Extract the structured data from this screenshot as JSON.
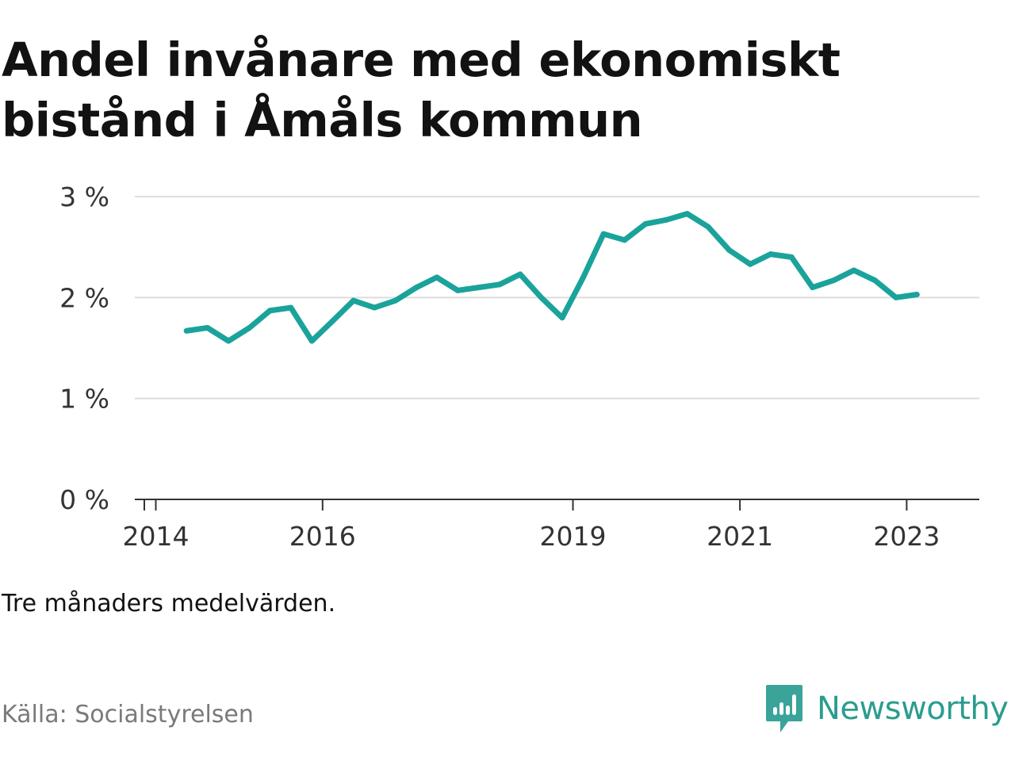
{
  "title": "Andel invånare med ekonomiskt bistånd i Åmåls kommun",
  "note": "Tre månaders medelvärden.",
  "source": "Källa: Socialstyrelsen",
  "brand": "Newsworthy",
  "colors": {
    "line": "#1aa39b",
    "grid": "#dddddd",
    "axis": "#333333",
    "brand": "#2a9d8f"
  },
  "chart_data": {
    "type": "line",
    "title": "Andel invånare med ekonomiskt bistånd i Åmåls kommun",
    "xlabel": "",
    "ylabel": "",
    "grid": true,
    "ylim": [
      0,
      3
    ],
    "xlim": [
      "2013-10-01",
      "2023-11-15"
    ],
    "yticks": [
      {
        "value": 0,
        "label": "0 %"
      },
      {
        "value": 1,
        "label": "1 %"
      },
      {
        "value": 2,
        "label": "2 %"
      },
      {
        "value": 3,
        "label": "3 %"
      }
    ],
    "xticks": [
      {
        "date": "2014-01-01",
        "label": "2014"
      },
      {
        "date": "2016-01-01",
        "label": "2016"
      },
      {
        "date": "2019-01-01",
        "label": "2019"
      },
      {
        "date": "2021-01-01",
        "label": "2021"
      },
      {
        "date": "2023-01-01",
        "label": "2023"
      }
    ],
    "series": [
      {
        "points": [
          {
            "x": "2014-05-15",
            "y": 1.67
          },
          {
            "x": "2014-08-15",
            "y": 1.7
          },
          {
            "x": "2014-11-15",
            "y": 1.57
          },
          {
            "x": "2015-02-15",
            "y": 1.7
          },
          {
            "x": "2015-05-15",
            "y": 1.87
          },
          {
            "x": "2015-08-15",
            "y": 1.9
          },
          {
            "x": "2015-11-15",
            "y": 1.57
          },
          {
            "x": "2016-02-15",
            "y": 1.77
          },
          {
            "x": "2016-05-15",
            "y": 1.97
          },
          {
            "x": "2016-08-15",
            "y": 1.9
          },
          {
            "x": "2016-11-15",
            "y": 1.97
          },
          {
            "x": "2017-02-15",
            "y": 2.1
          },
          {
            "x": "2017-05-15",
            "y": 2.2
          },
          {
            "x": "2017-08-15",
            "y": 2.07
          },
          {
            "x": "2017-11-15",
            "y": 2.1
          },
          {
            "x": "2018-02-15",
            "y": 2.13
          },
          {
            "x": "2018-05-15",
            "y": 2.23
          },
          {
            "x": "2018-08-15",
            "y": 2.0
          },
          {
            "x": "2018-11-15",
            "y": 1.8
          },
          {
            "x": "2019-02-15",
            "y": 2.2
          },
          {
            "x": "2019-05-15",
            "y": 2.63
          },
          {
            "x": "2019-08-15",
            "y": 2.57
          },
          {
            "x": "2019-11-15",
            "y": 2.73
          },
          {
            "x": "2020-02-15",
            "y": 2.77
          },
          {
            "x": "2020-05-15",
            "y": 2.83
          },
          {
            "x": "2020-08-15",
            "y": 2.7
          },
          {
            "x": "2020-11-15",
            "y": 2.47
          },
          {
            "x": "2021-02-15",
            "y": 2.33
          },
          {
            "x": "2021-05-15",
            "y": 2.43
          },
          {
            "x": "2021-08-15",
            "y": 2.4
          },
          {
            "x": "2021-11-15",
            "y": 2.1
          },
          {
            "x": "2022-02-15",
            "y": 2.17
          },
          {
            "x": "2022-05-15",
            "y": 2.27
          },
          {
            "x": "2022-08-15",
            "y": 2.17
          },
          {
            "x": "2022-11-15",
            "y": 2.0
          },
          {
            "x": "2023-02-15",
            "y": 2.03
          }
        ]
      }
    ]
  }
}
